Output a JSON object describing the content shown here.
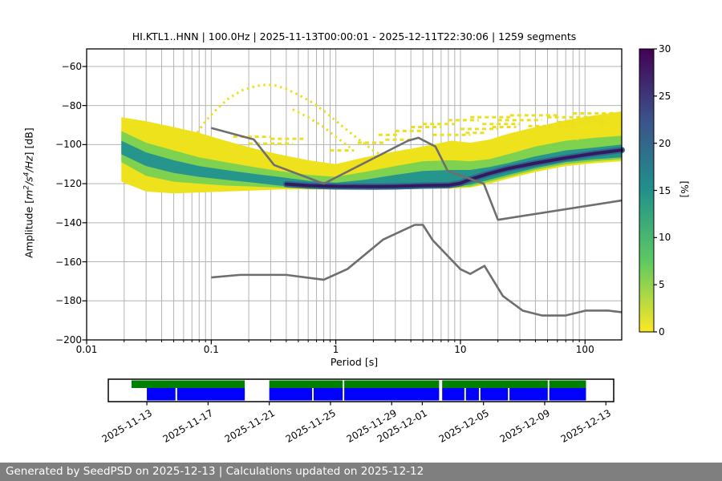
{
  "footer": {
    "text": "Generated by SeedPSD on 2025-12-13 | Calculations updated on 2025-12-12",
    "bg": "#7f7f7f",
    "fg": "#ffffff"
  },
  "chart_data": {
    "type": "heatmap",
    "title": "HI.KTL1..HNN | 100.0Hz | 2025-11-13T00:00:01 - 2025-12-11T22:30:06 | 1259 segments",
    "xlabel": "Period [s]",
    "ylabel_parts": {
      "pre": "Amplitude [",
      "m": "m",
      "msup": "2",
      "s": "/s",
      "ssup": "4",
      "hz": "/Hz",
      "post": "] [dB]"
    },
    "xscale": "log",
    "xlim": [
      0.01,
      197
    ],
    "ylim": [
      -200,
      -51
    ],
    "grid": true,
    "grid_color": "#b3b3b3",
    "xticks": {
      "values": [
        0.01,
        0.1,
        1,
        10,
        100
      ],
      "labels": [
        "0.01",
        "0.1",
        "1",
        "10",
        "100"
      ]
    },
    "yticks": {
      "values": [
        -60,
        -80,
        -100,
        -120,
        -140,
        -160,
        -180,
        -200
      ],
      "labels": [
        "−60",
        "−80",
        "−100",
        "−120",
        "−140",
        "−160",
        "−180",
        "−200"
      ]
    },
    "colorbar": {
      "label": "[%]",
      "ticks": [
        0,
        5,
        10,
        15,
        20,
        25,
        30
      ],
      "tick_labels": [
        "0",
        "5",
        "10",
        "15",
        "20",
        "25",
        "30"
      ],
      "vmin": 0,
      "vmax": 30,
      "cmap": "viridis_r",
      "gradient_bottom_to_top": [
        "#fde725",
        "#5ec962",
        "#21918c",
        "#3b528b",
        "#440154"
      ]
    },
    "noise_models": {
      "color": "#6e6e6e",
      "width": 2.6,
      "nhnm": [
        [
          0.1,
          -91.5
        ],
        [
          0.22,
          -97.4
        ],
        [
          0.32,
          -110.5
        ],
        [
          0.8,
          -120.0
        ],
        [
          3.8,
          -98.0
        ],
        [
          4.6,
          -96.5
        ],
        [
          6.3,
          -101.0
        ],
        [
          7.9,
          -113.5
        ],
        [
          15.4,
          -120.0
        ],
        [
          20.0,
          -138.5
        ],
        [
          197,
          -128.6
        ]
      ],
      "nlnm": [
        [
          0.1,
          -168.0
        ],
        [
          0.17,
          -166.7
        ],
        [
          0.4,
          -166.7
        ],
        [
          0.8,
          -169.2
        ],
        [
          1.24,
          -163.7
        ],
        [
          2.4,
          -148.6
        ],
        [
          4.3,
          -141.1
        ],
        [
          5.0,
          -141.1
        ],
        [
          6.0,
          -149.0
        ],
        [
          10.0,
          -163.8
        ],
        [
          12.0,
          -166.2
        ],
        [
          15.6,
          -162.1
        ],
        [
          21.9,
          -177.5
        ],
        [
          31.6,
          -185.0
        ],
        [
          45.0,
          -187.5
        ],
        [
          70.0,
          -187.5
        ],
        [
          101.0,
          -185.0
        ],
        [
          154.0,
          -185.0
        ],
        [
          197,
          -185.8
        ]
      ]
    },
    "density": {
      "periods": [
        0.019,
        0.03,
        0.05,
        0.08,
        0.13,
        0.22,
        0.35,
        0.6,
        1.0,
        1.7,
        3.0,
        5.0,
        8.5,
        12,
        17,
        24,
        40,
        70,
        120,
        197
      ],
      "bands": [
        {
          "name": "outer-low-probability",
          "color": "#eee21c",
          "top": [
            -86,
            -88,
            -91,
            -94,
            -98,
            -102,
            -105,
            -108,
            -110,
            -106.5,
            -103.5,
            -101,
            -98,
            -99,
            -97.5,
            -94.5,
            -91,
            -87.5,
            -85,
            -83
          ],
          "bottom": [
            -119,
            -124,
            -125,
            -124.5,
            -124,
            -123.5,
            -123,
            -123,
            -123,
            -123,
            -123,
            -122.5,
            -122.5,
            -122,
            -120,
            -117.5,
            -114,
            -111,
            -109.5,
            -108.5
          ]
        },
        {
          "name": "mid-probability",
          "color": "#7fd24f",
          "top": [
            -93,
            -99,
            -103,
            -106.5,
            -109,
            -111.5,
            -113.5,
            -115.5,
            -116.5,
            -114,
            -111,
            -108.5,
            -108,
            -108.5,
            -107.5,
            -105,
            -101,
            -98,
            -96.5,
            -95.5
          ],
          "bottom": [
            -109,
            -116,
            -119,
            -120,
            -121,
            -121.5,
            -122,
            -122.5,
            -122.5,
            -122.5,
            -122.5,
            -122,
            -122,
            -121.5,
            -119,
            -116.5,
            -113,
            -110,
            -108.5,
            -107.5
          ]
        },
        {
          "name": "high-probability",
          "color": "#26958b",
          "top": [
            -98,
            -104,
            -108,
            -111,
            -113,
            -115,
            -116.5,
            -118.5,
            -119.5,
            -118,
            -115.5,
            -113.5,
            -113,
            -113,
            -111.5,
            -109.5,
            -106,
            -103,
            -101.5,
            -100
          ],
          "bottom": [
            -105,
            -111,
            -114.5,
            -116.5,
            -118,
            -119.5,
            -121,
            -122,
            -122,
            -122,
            -122,
            -121.5,
            -121.5,
            -120.5,
            -118,
            -115.5,
            -112,
            -109,
            -107.5,
            -106.5
          ]
        }
      ],
      "mode_band": {
        "name": "highest-probability-mode",
        "fringe_color": "#31688e",
        "fringe_width": 8,
        "color": "#331a5f",
        "width": 4,
        "points": [
          [
            0.4,
            -120.2
          ],
          [
            0.6,
            -121
          ],
          [
            1,
            -121.4
          ],
          [
            2,
            -121.5
          ],
          [
            3,
            -121.4
          ],
          [
            5,
            -121
          ],
          [
            8,
            -120.8
          ],
          [
            10,
            -119.8
          ],
          [
            12,
            -117.8
          ],
          [
            17,
            -114.8
          ],
          [
            24,
            -112.3
          ],
          [
            40,
            -109.5
          ],
          [
            70,
            -106.8
          ],
          [
            120,
            -104.5
          ],
          [
            197,
            -102.8
          ]
        ]
      }
    },
    "outlier_arcs": {
      "color": "#ecdf1e",
      "width": 3,
      "dash": "2.5 4.5",
      "arcs": [
        [
          [
            0.065,
            -101
          ],
          [
            0.075,
            -95
          ],
          [
            0.09,
            -88
          ],
          [
            0.11,
            -82
          ],
          [
            0.14,
            -76
          ],
          [
            0.18,
            -72
          ],
          [
            0.23,
            -70
          ],
          [
            0.28,
            -69.3
          ],
          [
            0.33,
            -69.8
          ],
          [
            0.4,
            -71.5
          ],
          [
            0.5,
            -74.5
          ],
          [
            0.65,
            -78.5
          ],
          [
            0.85,
            -84
          ],
          [
            1.1,
            -90
          ],
          [
            1.5,
            -97
          ],
          [
            2.0,
            -103
          ],
          [
            2.6,
            -107.5
          ]
        ],
        [
          [
            0.45,
            -82
          ],
          [
            0.6,
            -86
          ],
          [
            0.8,
            -91
          ],
          [
            1.0,
            -96
          ],
          [
            1.3,
            -101.5
          ]
        ],
        [
          [
            28,
            -97.5
          ],
          [
            40,
            -95
          ],
          [
            55,
            -94.3
          ],
          [
            75,
            -95.5
          ],
          [
            90,
            -97.5
          ]
        ]
      ]
    },
    "streaks": {
      "color": "#ecdf1e",
      "width": 3,
      "dash": "5 4",
      "items": [
        [
          2.2,
          3.2,
          -95
        ],
        [
          2.5,
          4,
          -97.5
        ],
        [
          3,
          5,
          -93
        ],
        [
          4,
          7,
          -91
        ],
        [
          5,
          9,
          -89.5
        ],
        [
          6,
          12,
          -95
        ],
        [
          8,
          14,
          -87.5
        ],
        [
          10,
          20,
          -92
        ],
        [
          12,
          25,
          -86
        ],
        [
          15,
          30,
          -89.5
        ],
        [
          20,
          45,
          -87.5
        ],
        [
          25,
          60,
          -85
        ],
        [
          35,
          80,
          -90.5
        ],
        [
          50,
          120,
          -86
        ],
        [
          60,
          150,
          -88.5
        ],
        [
          80,
          197,
          -84
        ],
        [
          100,
          197,
          -87
        ],
        [
          130,
          197,
          -89.5
        ],
        [
          0.15,
          0.3,
          -96
        ],
        [
          0.2,
          0.45,
          -99.5
        ],
        [
          0.3,
          0.55,
          -97
        ],
        [
          1.5,
          2.5,
          -99
        ],
        [
          0.9,
          1.4,
          -103
        ],
        [
          11,
          16,
          -94
        ],
        [
          18,
          28,
          -91
        ]
      ]
    }
  },
  "timeline": {
    "axis_days": [
      -2.52,
      30.51
    ],
    "rows": [
      {
        "name": "psd-coverage-row",
        "color": "#008000",
        "segments": [
          [
            -1.0,
            6.4
          ],
          [
            8.0,
            12.8
          ],
          [
            12.9,
            19.1
          ],
          [
            19.3,
            26.2
          ],
          [
            26.3,
            28.7
          ]
        ]
      },
      {
        "name": "data-availability-row",
        "color": "#0000ff",
        "segments": [
          [
            0,
            1.87
          ],
          [
            1.98,
            6.4
          ],
          [
            8.0,
            10.8
          ],
          [
            10.9,
            12.8
          ],
          [
            12.9,
            19.1
          ],
          [
            19.3,
            20.75
          ],
          [
            20.85,
            21.7
          ],
          [
            21.8,
            23.6
          ],
          [
            23.7,
            26.2
          ],
          [
            26.3,
            28.7
          ]
        ]
      }
    ],
    "ticks": [
      {
        "day": 0,
        "label": "2025-11-13"
      },
      {
        "day": 4,
        "label": "2025-11-17"
      },
      {
        "day": 8,
        "label": "2025-11-21"
      },
      {
        "day": 12,
        "label": "2025-11-25"
      },
      {
        "day": 16,
        "label": "2025-11-29"
      },
      {
        "day": 18,
        "label": "2025-12-01"
      },
      {
        "day": 22,
        "label": "2025-12-05"
      },
      {
        "day": 26,
        "label": "2025-12-09"
      },
      {
        "day": 30,
        "label": "2025-12-13"
      }
    ]
  }
}
